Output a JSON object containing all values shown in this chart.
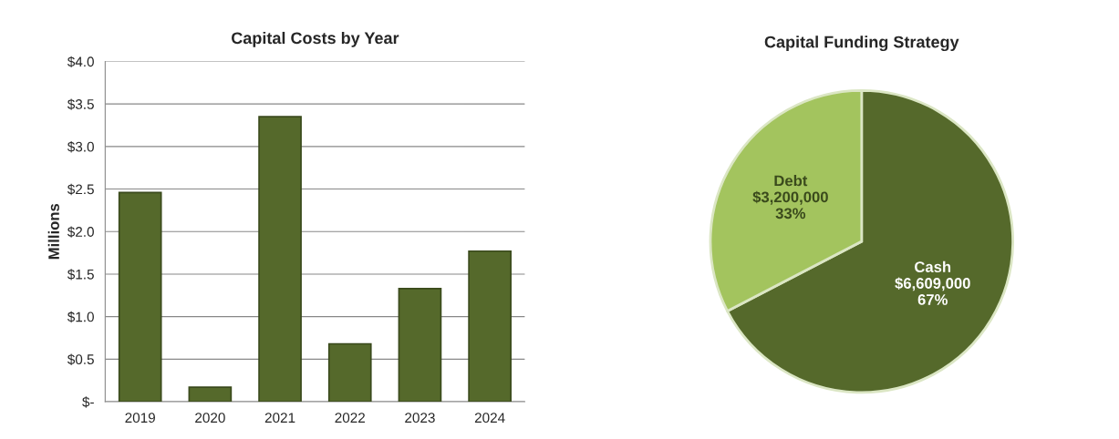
{
  "chart_data": [
    {
      "type": "bar",
      "title": "Capital Costs by Year",
      "ylabel": "Millions",
      "categories": [
        "2019",
        "2020",
        "2021",
        "2022",
        "2023",
        "2024"
      ],
      "values": [
        2.46,
        0.17,
        3.35,
        0.68,
        1.33,
        1.77
      ],
      "color": "#55692b",
      "ylim": [
        0,
        4.0
      ],
      "yticks": [
        {
          "value": 0,
          "label": "$-"
        },
        {
          "value": 0.5,
          "label": "$0.5"
        },
        {
          "value": 1.0,
          "label": "$1.0"
        },
        {
          "value": 1.5,
          "label": "$1.5"
        },
        {
          "value": 2.0,
          "label": "$2.0"
        },
        {
          "value": 2.5,
          "label": "$2.5"
        },
        {
          "value": 3.0,
          "label": "$3.0"
        },
        {
          "value": 3.5,
          "label": "$3.5"
        },
        {
          "value": 4.0,
          "label": "$4.0"
        }
      ],
      "grid": "y"
    },
    {
      "type": "pie",
      "title": "Capital Funding Strategy",
      "categories": [
        "Cash",
        "Debt"
      ],
      "values": [
        6609000,
        3200000
      ],
      "colors": [
        "#55692b",
        "#a3c45e"
      ],
      "value_labels": [
        "$6,609,000\n67%",
        "$3,200,000\n33%"
      ]
    }
  ]
}
